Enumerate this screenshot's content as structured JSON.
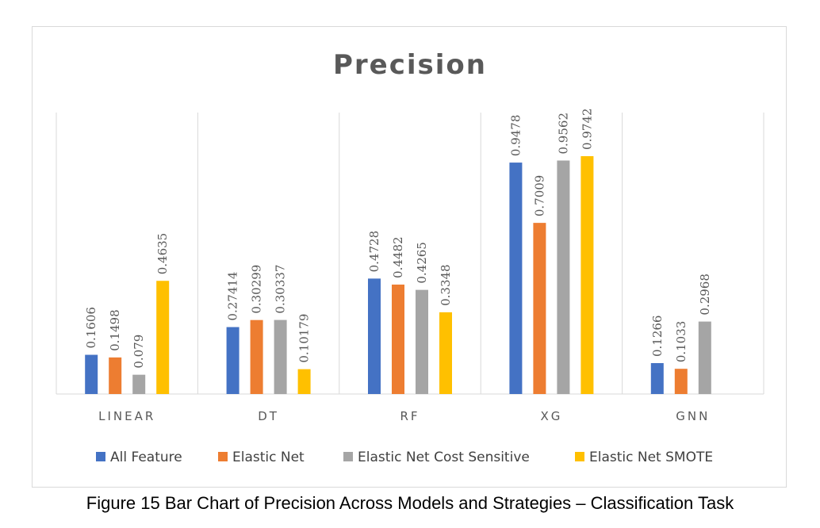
{
  "caption": "Figure 15 Bar Chart of Precision Across Models and Strategies – Classification Task",
  "colors": {
    "all_feature": "#4472c4",
    "elastic_net": "#ed7d31",
    "elastic_net_cost_sensitive": "#a5a5a5",
    "elastic_net_smote": "#ffc000",
    "gridline": "#d9d9d9",
    "text": "#595959"
  },
  "chart_data": {
    "type": "bar",
    "title": "Precision",
    "xlabel": "",
    "ylabel": "",
    "ylim": [
      0,
      1.1
    ],
    "grid": "vertical category separators",
    "legend_position": "bottom",
    "categories": [
      "LINEAR",
      "DT",
      "RF",
      "XG",
      "GNN"
    ],
    "series": [
      {
        "name": "All Feature",
        "color": "#4472c4",
        "values": [
          0.1606,
          0.27414,
          0.4728,
          0.9478,
          0.1266
        ],
        "labels": [
          "0.1606",
          "0.27414",
          "0.4728",
          "0.9478",
          "0.1266"
        ]
      },
      {
        "name": "Elastic Net",
        "color": "#ed7d31",
        "values": [
          0.1498,
          0.30299,
          0.4482,
          0.7009,
          0.1033
        ],
        "labels": [
          "0.1498",
          "0.30299",
          "0.4482",
          "0.7009",
          "0.1033"
        ]
      },
      {
        "name": "Elastic Net Cost Sensitive",
        "color": "#a5a5a5",
        "values": [
          0.079,
          0.30337,
          0.4265,
          0.9562,
          0.2968
        ],
        "labels": [
          "0.079",
          "0.30337",
          "0.4265",
          "0.9562",
          "0.2968"
        ]
      },
      {
        "name": "Elastic Net SMOTE",
        "color": "#ffc000",
        "values": [
          0.4635,
          0.10179,
          0.3348,
          0.9742,
          null
        ],
        "labels": [
          "0.4635",
          "0.10179",
          "0.3348",
          "0.9742",
          null
        ]
      }
    ]
  }
}
